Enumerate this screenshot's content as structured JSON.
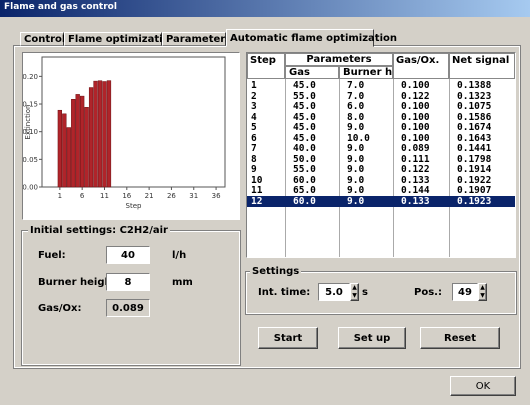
{
  "window": {
    "title": "Flame and gas control"
  },
  "tabs": [
    "Control",
    "Flame optimization",
    "Parameters",
    "Automatic flame optimization"
  ],
  "chart_data": {
    "type": "bar",
    "xlabel": "Step",
    "ylabel": "Extinction",
    "x": [
      1,
      2,
      3,
      4,
      5,
      6,
      7,
      8,
      9,
      10,
      11,
      12
    ],
    "values": [
      0.1388,
      0.1323,
      0.1075,
      0.1586,
      0.1674,
      0.1643,
      0.1441,
      0.1798,
      0.1914,
      0.1922,
      0.1907,
      0.1923
    ],
    "color": "#b0242a",
    "xlim": [
      -3,
      38
    ],
    "xticks": [
      1,
      6,
      11,
      16,
      21,
      26,
      31,
      36
    ],
    "ylim": [
      0,
      0.235
    ],
    "yticks": [
      {
        "value": 0,
        "label": "0.00"
      },
      0.05,
      {
        "value": 0.1,
        "label": "0.10"
      },
      0.15,
      {
        "value": 0.2,
        "label": "0.20"
      }
    ]
  },
  "table": {
    "headers": [
      "Step",
      "Parameters",
      "Gas/Ox.",
      "Net signal"
    ],
    "subheaders": [
      "Gas",
      "Burner he"
    ],
    "rows": [
      [
        "1",
        "45.0",
        "7.0",
        "0.100",
        "0.1388"
      ],
      [
        "2",
        "55.0",
        "7.0",
        "0.122",
        "0.1323"
      ],
      [
        "3",
        "45.0",
        "6.0",
        "0.100",
        "0.1075"
      ],
      [
        "4",
        "45.0",
        "8.0",
        "0.100",
        "0.1586"
      ],
      [
        "5",
        "45.0",
        "9.0",
        "0.100",
        "0.1674"
      ],
      [
        "6",
        "45.0",
        "10.0",
        "0.100",
        "0.1643"
      ],
      [
        "7",
        "40.0",
        "9.0",
        "0.089",
        "0.1441"
      ],
      [
        "8",
        "50.0",
        "9.0",
        "0.111",
        "0.1798"
      ],
      [
        "9",
        "55.0",
        "9.0",
        "0.122",
        "0.1914"
      ],
      [
        "10",
        "60.0",
        "9.0",
        "0.133",
        "0.1922"
      ],
      [
        "11",
        "65.0",
        "9.0",
        "0.144",
        "0.1907"
      ],
      [
        "12",
        "60.0",
        "9.0",
        "0.133",
        "0.1923"
      ]
    ]
  },
  "initial_settings": {
    "title": "Initial settings: C2H2/air",
    "fields": [
      {
        "label": "Fuel:",
        "value": "40",
        "unit": "l/h"
      },
      {
        "label": "Burner height:",
        "value": "8",
        "unit": "mm"
      },
      {
        "label": "Gas/Ox:",
        "value": "0.089"
      }
    ]
  },
  "settings": {
    "title": "Settings",
    "int_time_label": "Int. time:",
    "int_time": "5.0",
    "int_time_unit": "s",
    "pos_label": "Pos.:",
    "pos": "49"
  },
  "buttons": [
    "Start",
    "Set up",
    "Reset"
  ],
  "ok": "OK"
}
